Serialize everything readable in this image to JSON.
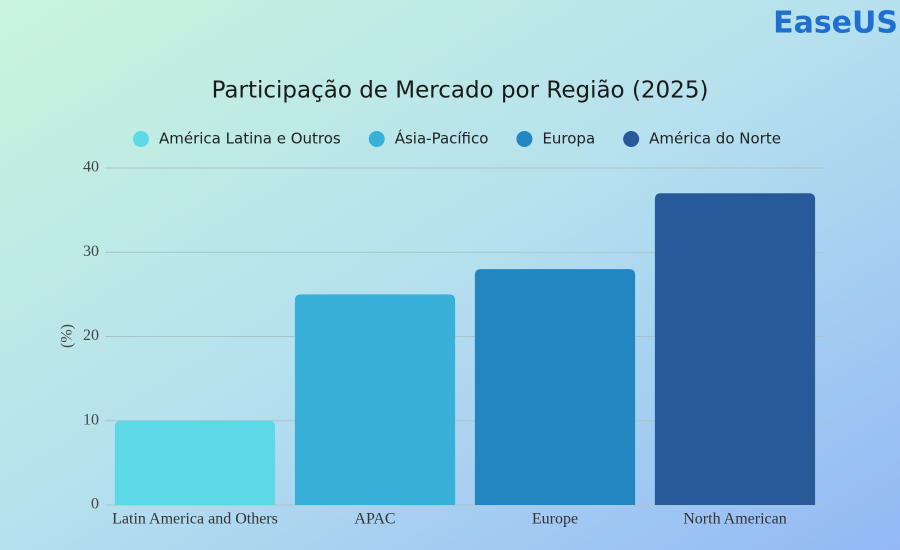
{
  "logo": "EaseUS",
  "chart_data": {
    "type": "bar",
    "title": "Participação de Mercado por Região (2025)",
    "y_label": "(%)",
    "categories": [
      "Latin America and Others",
      "APAC",
      "Europe",
      "North American"
    ],
    "series": [
      {
        "name": "América Latina e Outros",
        "color": "#5dd8e6",
        "values": [
          10,
          null,
          null,
          null
        ]
      },
      {
        "name": "Ásia-Pacífico",
        "color": "#38b0d8",
        "values": [
          null,
          25,
          null,
          null
        ]
      },
      {
        "name": "Europa",
        "color": "#2286c0",
        "values": [
          null,
          null,
          28,
          null
        ]
      },
      {
        "name": "América do Norte",
        "color": "#285a99",
        "values": [
          null,
          null,
          null,
          37
        ]
      }
    ],
    "ylim": [
      0,
      40
    ],
    "yticks": [
      0,
      10,
      20,
      30,
      40
    ],
    "grid": true
  }
}
